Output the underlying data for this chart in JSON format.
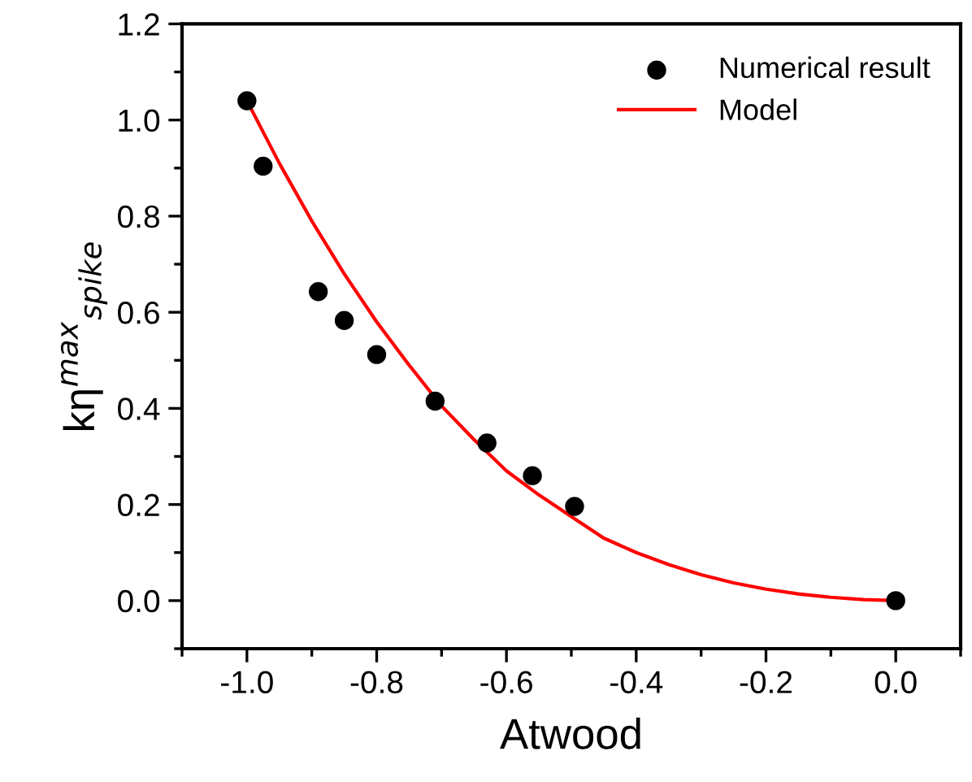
{
  "chart_data": {
    "type": "scatter",
    "xlabel": "Atwood",
    "ylabel": "kη$^{max}$$_{spike}$",
    "xlim": [
      -1.1,
      0.1
    ],
    "xticks": [
      {
        "value": -1.0,
        "label": "-1.0"
      },
      -0.8,
      -0.6,
      -0.4,
      -0.2,
      {
        "value": 0.0,
        "label": "0.0"
      }
    ],
    "ylim": [
      -0.1,
      1.2
    ],
    "yticks": [
      {
        "value": 0.0,
        "label": "0.0"
      },
      0.2,
      0.4,
      0.6,
      0.8,
      {
        "value": 1.0,
        "label": "1.0"
      },
      1.2
    ],
    "grid": false,
    "legend": "top right",
    "series": [
      {
        "name": "Numerical result",
        "marker": "circle",
        "color": "#000000",
        "x": [
          -1.0,
          -0.975,
          -0.89,
          -0.85,
          -0.8,
          -0.71,
          -0.63,
          -0.56,
          -0.495,
          0.0
        ],
        "values": [
          1.04,
          0.904,
          0.643,
          0.583,
          0.512,
          0.415,
          0.328,
          0.26,
          0.196,
          0.0
        ]
      },
      {
        "name": "Model",
        "type": "line",
        "marker": "none",
        "line_style": "solid",
        "color": "#ff0000",
        "x": [
          -1.0,
          -0.95,
          -0.9,
          -0.85,
          -0.8,
          -0.75,
          -0.7,
          -0.65,
          -0.6,
          -0.55,
          -0.5,
          -0.45,
          -0.4,
          -0.35,
          -0.3,
          -0.25,
          -0.2,
          -0.15,
          -0.1,
          -0.05,
          0.0
        ],
        "values": [
          1.04,
          0.91,
          0.79,
          0.68,
          0.58,
          0.49,
          0.405,
          0.335,
          0.27,
          0.22,
          0.175,
          0.13,
          0.1,
          0.075,
          0.054,
          0.037,
          0.024,
          0.014,
          0.007,
          0.002,
          0.0
        ]
      }
    ]
  }
}
